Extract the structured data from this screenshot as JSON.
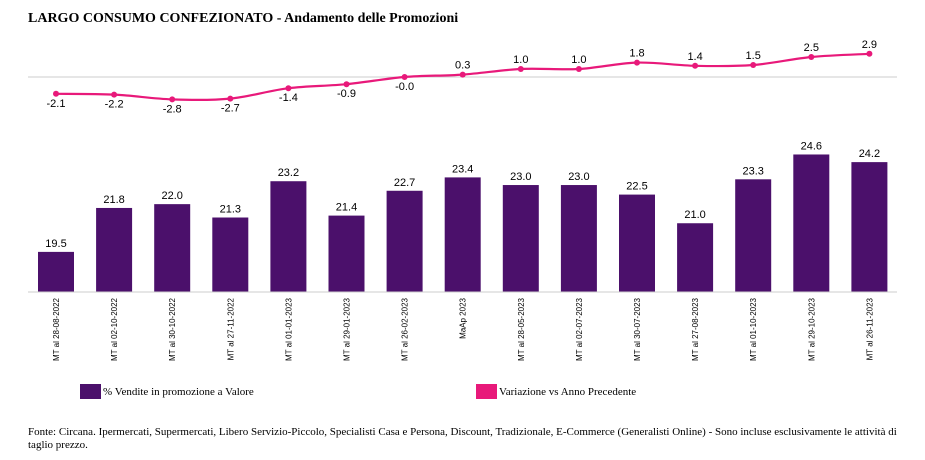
{
  "title": "LARGO CONSUMO CONFEZIONATO - Andamento delle Promozioni",
  "colors": {
    "bar": "#4B106B",
    "line": "#E8197A",
    "baseline": "#cccccc"
  },
  "chart_data": {
    "type": "bar+line",
    "categories": [
      "MT al 28-08-2022",
      "MT al 02-10-2022",
      "MT al 30-10-2022",
      "MT al 27-11-2022",
      "MT al 01-01-2023",
      "MT al 29-01-2023",
      "MT al 26-02-2023",
      "MaAp 2023",
      "MT al 28-05-2023",
      "MT al 02-07-2023",
      "MT al 30-07-2023",
      "MT al 27-08-2023",
      "MT al 01-10-2023",
      "MT al 29-10-2023",
      "MT al 26-11-2023"
    ],
    "series": [
      {
        "name": "% Vendite in promozione a Valore",
        "type": "bar",
        "values": [
          19.5,
          21.8,
          22.0,
          21.3,
          23.2,
          21.4,
          22.7,
          23.4,
          23.0,
          23.0,
          22.5,
          21.0,
          23.3,
          24.6,
          24.2
        ],
        "labels": [
          "19.5",
          "21.8",
          "22.0",
          "21.3",
          "23.2",
          "21.4",
          "22.7",
          "23.4",
          "23.0",
          "23.0",
          "22.5",
          "21.0",
          "23.3",
          "24.6",
          "24.2"
        ]
      },
      {
        "name": "Variazione vs Anno Precedente",
        "type": "line",
        "values": [
          -2.1,
          -2.2,
          -2.8,
          -2.7,
          -1.4,
          -0.9,
          -0.0,
          0.3,
          1.0,
          1.0,
          1.8,
          1.4,
          1.5,
          2.5,
          2.9
        ],
        "labels": [
          "-2.1",
          "-2.2",
          "-2.8",
          "-2.7",
          "-1.4",
          "-0.9",
          "-0.0",
          "0.3",
          "1.0",
          "1.0",
          "1.8",
          "1.4",
          "1.5",
          "2.5",
          "2.9"
        ]
      }
    ]
  },
  "legend": {
    "bar_label": "% Vendite in promozione a Valore",
    "line_label": "Variazione vs Anno Precedente"
  },
  "footnote": "Fonte: Circana. Ipermercati, Supermercati, Libero Servizio-Piccolo, Specialisti Casa e Persona, Discount, Tradizionale, E-Commerce (Generalisti Online) - Sono incluse esclusivamente le attività di taglio prezzo."
}
